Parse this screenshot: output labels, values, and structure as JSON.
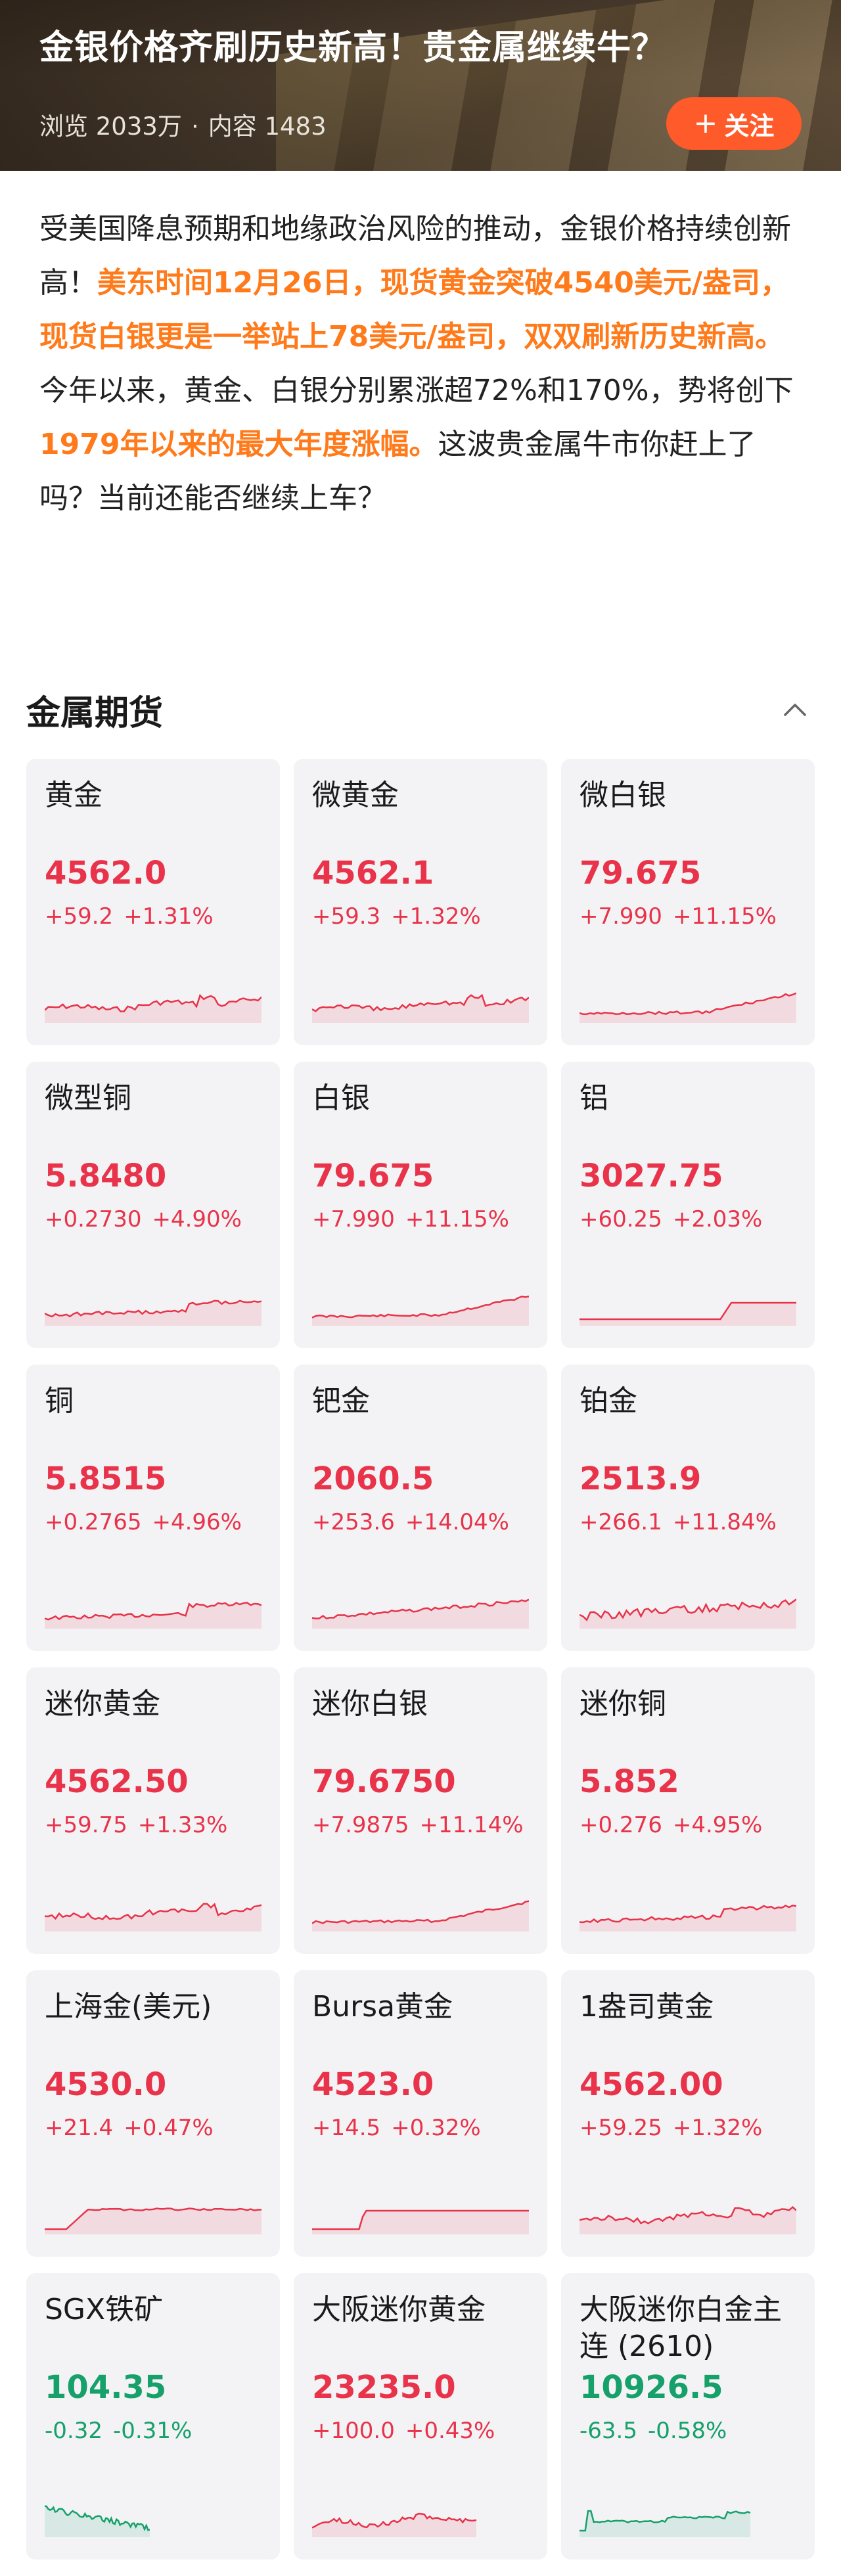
{
  "header": {
    "title": "金银价格齐刷历史新高！贵金属继续牛？",
    "views_label": "浏览",
    "views": "2033万",
    "separator": "·",
    "content_label": "内容",
    "content_count": "1483",
    "follow_label": "关注"
  },
  "intro": {
    "p1": "受美国降息预期和地缘政治风险的推动，金银价格持续创新高！",
    "p2": "美东时间12月26日，现货黄金突破4540美元/盎司，现货白银更是一举站上78美元/盎司，双双刷新历史新高。",
    "p3": "今年以来，黄金、白银分别累涨超72%和170%，势将创下",
    "p4": "1979年以来的最大年度涨幅。",
    "p5": "这波贵金属牛市你赶上了吗？当前还能否继续上车？"
  },
  "section": {
    "title": "金属期货"
  },
  "colors": {
    "up": "#e8334a",
    "down": "#16a06a",
    "accent": "#ff5a2a",
    "highlight": "#ff7a1a"
  },
  "cards": [
    {
      "name": "黄金",
      "price": "4562.0",
      "change": "+59.2",
      "pct": "+1.31%",
      "dir": "up",
      "trend": "wavy-up"
    },
    {
      "name": "微黄金",
      "price": "4562.1",
      "change": "+59.3",
      "pct": "+1.32%",
      "dir": "up",
      "trend": "wavy-up"
    },
    {
      "name": "微白银",
      "price": "79.675",
      "change": "+7.990",
      "pct": "+11.15%",
      "dir": "up",
      "trend": "late-rise"
    },
    {
      "name": "微型铜",
      "price": "5.8480",
      "change": "+0.2730",
      "pct": "+4.90%",
      "dir": "up",
      "trend": "step-up"
    },
    {
      "name": "白银",
      "price": "79.675",
      "change": "+7.990",
      "pct": "+11.15%",
      "dir": "up",
      "trend": "late-rise"
    },
    {
      "name": "铝",
      "price": "3027.75",
      "change": "+60.25",
      "pct": "+2.03%",
      "dir": "up",
      "trend": "flat-jump"
    },
    {
      "name": "铜",
      "price": "5.8515",
      "change": "+0.2765",
      "pct": "+4.96%",
      "dir": "up",
      "trend": "step-up"
    },
    {
      "name": "钯金",
      "price": "2060.5",
      "change": "+253.6",
      "pct": "+14.04%",
      "dir": "up",
      "trend": "steady-up"
    },
    {
      "name": "铂金",
      "price": "2513.9",
      "change": "+266.1",
      "pct": "+11.84%",
      "dir": "up",
      "trend": "noisy-up"
    },
    {
      "name": "迷你黄金",
      "price": "4562.50",
      "change": "+59.75",
      "pct": "+1.33%",
      "dir": "up",
      "trend": "wavy-up"
    },
    {
      "name": "迷你白银",
      "price": "79.6750",
      "change": "+7.9875",
      "pct": "+11.14%",
      "dir": "up",
      "trend": "late-rise"
    },
    {
      "name": "迷你铜",
      "price": "5.852",
      "change": "+0.276",
      "pct": "+4.95%",
      "dir": "up",
      "trend": "step-up"
    },
    {
      "name": "上海金(美元)",
      "price": "4530.0",
      "change": "+21.4",
      "pct": "+0.47%",
      "dir": "up",
      "trend": "early-jump"
    },
    {
      "name": "Bursa黄金",
      "price": "4523.0",
      "change": "+14.5",
      "pct": "+0.32%",
      "dir": "up",
      "trend": "early-jump2"
    },
    {
      "name": "1盎司黄金",
      "price": "4562.00",
      "change": "+59.25",
      "pct": "+1.32%",
      "dir": "up",
      "trend": "wavy-up"
    },
    {
      "name": "SGX铁矿",
      "price": "104.35",
      "change": "-0.32",
      "pct": "-0.31%",
      "dir": "down",
      "trend": "down-short"
    },
    {
      "name": "大阪迷你黄金",
      "price": "23235.0",
      "change": "+100.0",
      "pct": "+0.43%",
      "dir": "up",
      "trend": "wavy-short"
    },
    {
      "name": "大阪迷你白金主连 (2610)",
      "price": "10926.5",
      "change": "-63.5",
      "pct": "-0.58%",
      "dir": "down",
      "trend": "down-jump"
    }
  ]
}
